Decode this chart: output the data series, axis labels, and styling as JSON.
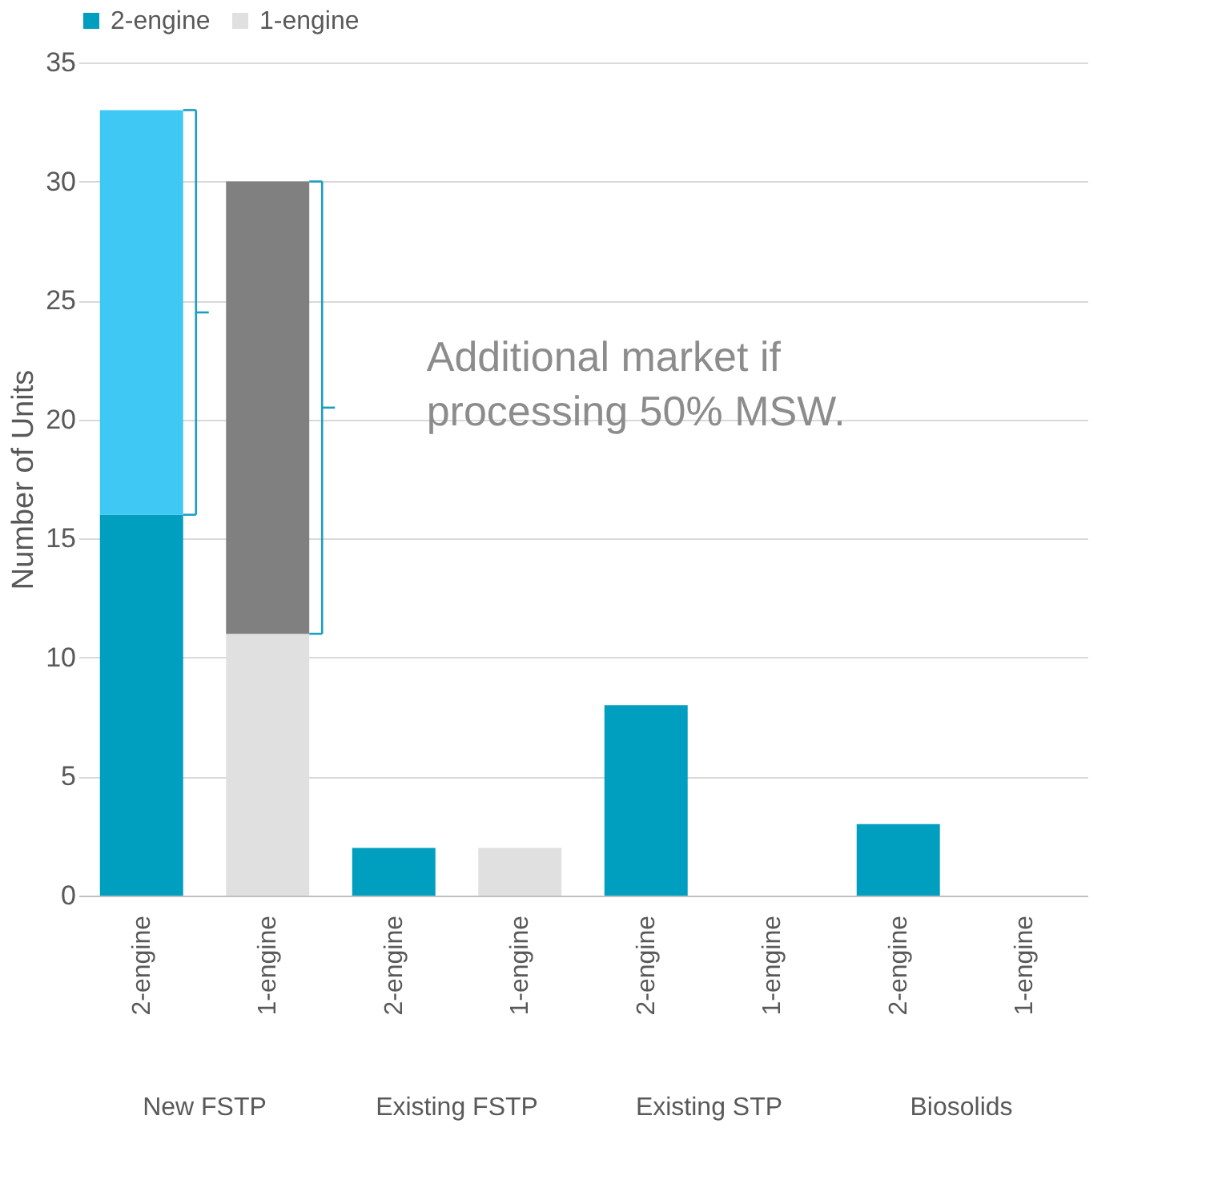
{
  "chart_data": {
    "type": "bar",
    "stacked": true,
    "categories": [
      "2-engine",
      "1-engine",
      "2-engine",
      "1-engine",
      "2-engine",
      "1-engine",
      "2-engine",
      "1-engine"
    ],
    "ylabel": "Number of Units",
    "ylim": [
      0,
      35
    ],
    "yticks": [
      0,
      5,
      10,
      15,
      20,
      25,
      30,
      35
    ],
    "grid": "y",
    "legend": "top",
    "series": [
      {
        "name": "2-engine",
        "color": "#009fbf",
        "values": [
          16,
          null,
          2,
          null,
          8,
          null,
          3,
          null
        ]
      },
      {
        "name": "1-engine",
        "color": "#e0e0e0",
        "values": [
          null,
          11,
          null,
          2,
          null,
          null,
          null,
          null
        ]
      },
      {
        "color": "#40c8f4",
        "values": [
          17,
          null,
          null,
          null,
          null,
          null,
          null,
          null
        ]
      },
      {
        "color": "#808080",
        "values": [
          null,
          19,
          null,
          null,
          null,
          null,
          null,
          null
        ]
      }
    ],
    "annotations": [
      "New FSTP",
      "Existing FSTP",
      "Existing STP",
      "Biosolids",
      "Additional market if processing 50% MSW."
    ]
  }
}
